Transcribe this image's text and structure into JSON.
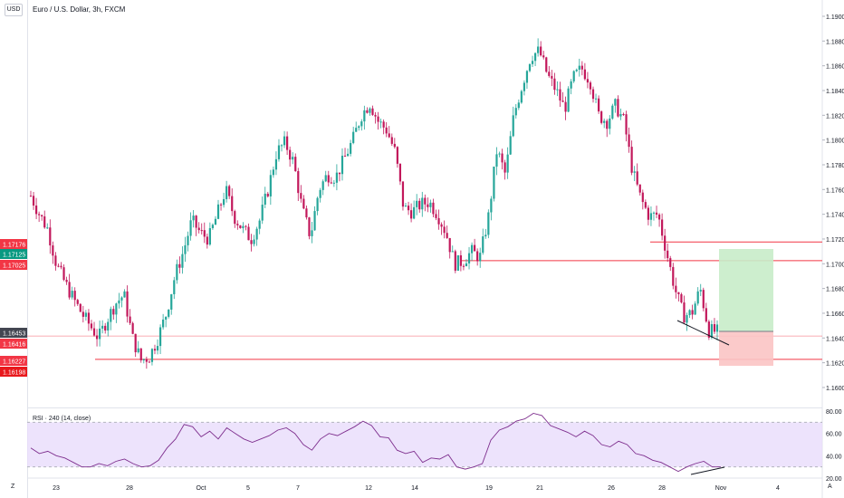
{
  "header": {
    "currency_button": "USD",
    "symbol_title": "Euro / U.S. Dollar, 3h, FXCM"
  },
  "price_axis": {
    "ticks": [
      "1.19000",
      "1.18800",
      "1.18600",
      "1.18400",
      "1.18200",
      "1.18000",
      "1.17800",
      "1.17600",
      "1.17400",
      "1.17200",
      "1.17000",
      "1.16800",
      "1.16600",
      "1.16400",
      "1.16200",
      "1.16000"
    ],
    "tick_values": [
      1.19,
      1.188,
      1.186,
      1.184,
      1.182,
      1.18,
      1.178,
      1.176,
      1.174,
      1.172,
      1.17,
      1.168,
      1.166,
      1.164,
      1.162,
      1.16
    ]
  },
  "left_price_labels": [
    {
      "text": "1.17176",
      "value": 1.17176,
      "color": "#f23645"
    },
    {
      "text": "1.17125",
      "value": 1.17125,
      "color": "#089981"
    },
    {
      "text": "1.17025",
      "value": 1.17025,
      "color": "#f23645"
    },
    {
      "text": "1.16453",
      "value": 1.16453,
      "color": "#434651"
    },
    {
      "text": "1.16416",
      "value": 1.16416,
      "color": "#f23645"
    },
    {
      "text": "1.16227",
      "value": 1.16227,
      "color": "#f23645"
    },
    {
      "text": "1.16198",
      "value": 1.16198,
      "color": "#e8191d"
    }
  ],
  "rsi": {
    "label": "RSI · 240 (14, close)",
    "ticks": [
      "80.00",
      "60.00",
      "40.00",
      "20.00"
    ],
    "tick_values": [
      80,
      60,
      40,
      20
    ],
    "band_color": "#e9dcfb",
    "line_color": "#7e2f8e"
  },
  "time_axis": {
    "labels": [
      "23",
      "28",
      "Oct",
      "5",
      "7",
      "12",
      "14",
      "19",
      "21",
      "26",
      "28",
      "Nov",
      "4"
    ],
    "corner_left": "Z",
    "corner_right": "A"
  },
  "colors": {
    "up": "#26a69a",
    "down": "#c2185b",
    "line": "#f23645",
    "long_target_fill": "#c8ecc9",
    "long_stop_fill": "#fbc4c4"
  },
  "chart_data": {
    "type": "candlestick",
    "title": "Euro / U.S. Dollar, 3h, FXCM",
    "x": [
      "23",
      "28",
      "Oct",
      "5",
      "7",
      "12",
      "14",
      "19",
      "21",
      "26",
      "28",
      "Nov",
      "4"
    ],
    "ylim": [
      1.1595,
      1.1905
    ],
    "close_path": [
      1.1755,
      1.174,
      1.1728,
      1.17,
      1.1685,
      1.1672,
      1.166,
      1.165,
      1.164,
      1.1655,
      1.1668,
      1.1675,
      1.164,
      1.1622,
      1.1625,
      1.164,
      1.166,
      1.169,
      1.171,
      1.1735,
      1.1725,
      1.172,
      1.174,
      1.176,
      1.1738,
      1.1728,
      1.172,
      1.1735,
      1.176,
      1.179,
      1.1798,
      1.1782,
      1.1745,
      1.1722,
      1.176,
      1.1772,
      1.177,
      1.1785,
      1.18,
      1.182,
      1.183,
      1.1815,
      1.1808,
      1.179,
      1.1745,
      1.1742,
      1.1748,
      1.175,
      1.174,
      1.1725,
      1.17,
      1.1702,
      1.171,
      1.1705,
      1.1738,
      1.1792,
      1.1772,
      1.182,
      1.1845,
      1.1868,
      1.1872,
      1.1852,
      1.184,
      1.1825,
      1.185,
      1.1858,
      1.1848,
      1.182,
      1.1815,
      1.1828,
      1.1815,
      1.1775,
      1.1752,
      1.1738,
      1.174,
      1.171,
      1.168,
      1.1658,
      1.166,
      1.168,
      1.1646,
      1.1645
    ],
    "horizontal_levels": [
      1.17176,
      1.17025,
      1.16416,
      1.16227
    ],
    "rsi_series": [
      47,
      42,
      44,
      40,
      38,
      34,
      30,
      30,
      33,
      31,
      35,
      37,
      33,
      30,
      31,
      36,
      47,
      55,
      68,
      66,
      57,
      62,
      55,
      65,
      60,
      55,
      52,
      55,
      58,
      63,
      65,
      60,
      50,
      45,
      55,
      60,
      58,
      62,
      66,
      71,
      67,
      57,
      56,
      45,
      42,
      44,
      34,
      38,
      37,
      41,
      30,
      28,
      30,
      33,
      54,
      63,
      66,
      71,
      73,
      78,
      76,
      67,
      64,
      61,
      57,
      62,
      58,
      50,
      48,
      53,
      50,
      42,
      40,
      36,
      34,
      30,
      26,
      30,
      33,
      35,
      30,
      30
    ]
  }
}
